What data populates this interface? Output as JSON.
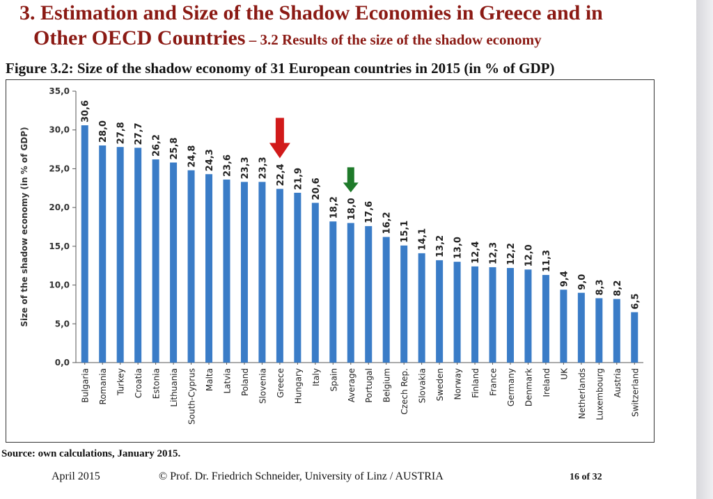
{
  "slide": {
    "title_line1": "3. Estimation and Size of the Shadow Economies in Greece and in",
    "title_line2_main": "Other OECD Countries",
    "title_line2_sub": " – 3.2 Results of the size of the shadow economy",
    "figure_caption": "Figure 3.2: Size of the shadow economy of 31 European countries in 2015 (in % of GDP)",
    "source": "Source: own calculations, January 2015.",
    "footer_date": "April 2015",
    "footer_author": "© Prof. Dr. Friedrich Schneider, University of Linz / AUSTRIA",
    "footer_page": "16 of 32"
  },
  "chart_data": {
    "type": "bar",
    "ylabel": "Size of the shadow economy (in % of GDP)",
    "ylim": [
      0,
      35
    ],
    "yticks": [
      "0,0",
      "5,0",
      "10,0",
      "15,0",
      "20,0",
      "25,0",
      "30,0",
      "35,0"
    ],
    "grid": false,
    "bar_color": "#3a7cc7",
    "categories": [
      "Bulgaria",
      "Romania",
      "Turkey",
      "Croatia",
      "Estonia",
      "Lithuania",
      "South-Cyprus",
      "Malta",
      "Latvia",
      "Poland",
      "Slovenia",
      "Greece",
      "Hungary",
      "Italy",
      "Spain",
      "Average",
      "Portugal",
      "Belgium",
      "Czech Rep.",
      "Slovakia",
      "Sweden",
      "Norway",
      "Finland",
      "France",
      "Germany",
      "Denmark",
      "Ireland",
      "UK",
      "Netherlands",
      "Luxembourg",
      "Austria",
      "Switzerland"
    ],
    "values": [
      30.6,
      28.0,
      27.8,
      27.7,
      26.2,
      25.8,
      24.8,
      24.3,
      23.6,
      23.3,
      23.3,
      22.4,
      21.9,
      20.6,
      18.2,
      18.0,
      17.6,
      16.2,
      15.1,
      14.1,
      13.2,
      13.0,
      12.4,
      12.3,
      12.2,
      12.0,
      11.3,
      9.4,
      9.0,
      8.3,
      8.2,
      6.5
    ],
    "value_labels": [
      "30,6",
      "28,0",
      "27,8",
      "27,7",
      "26,2",
      "25,8",
      "24,8",
      "24,3",
      "23,6",
      "23,3",
      "23,3",
      "22,4",
      "21,9",
      "20,6",
      "18,2",
      "18,0",
      "17,6",
      "16,2",
      "15,1",
      "14,1",
      "13,2",
      "13,0",
      "12,4",
      "12,3",
      "12,2",
      "12,0",
      "11,3",
      "9,4",
      "9,0",
      "8,3",
      "8,2",
      "6,5"
    ],
    "annotations": [
      {
        "type": "arrow",
        "category": "Greece",
        "color": "#d11a1a"
      },
      {
        "type": "arrow",
        "category": "Average",
        "color": "#1f7a2a"
      }
    ]
  }
}
